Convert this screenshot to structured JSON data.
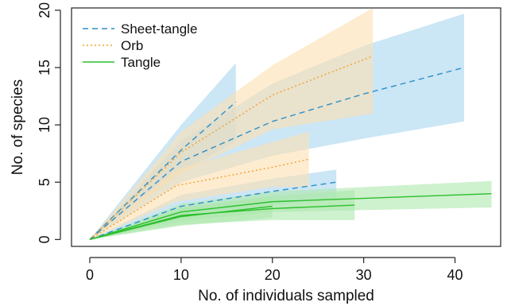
{
  "chart_data": {
    "type": "line",
    "title": "",
    "xlabel": "No. of individuals sampled",
    "ylabel": "No. of species",
    "xlim": [
      -2,
      45
    ],
    "ylim": [
      -0.6,
      20.2
    ],
    "xticks": [
      0,
      10,
      20,
      30,
      40
    ],
    "yticks": [
      0,
      5,
      10,
      15,
      20
    ],
    "grid": false,
    "legend_position": "top-left",
    "series": [
      {
        "name": "Sheet-tangle",
        "color": "#2a8fc9",
        "band_color": "#a8d6ee",
        "dash": "7,5",
        "curves": [
          {
            "x": [
              0,
              10,
              16
            ],
            "y": [
              0,
              7.8,
              12
            ],
            "lower": [
              0,
              5.8,
              8.6
            ],
            "upper": [
              0,
              10.0,
              15.4
            ]
          },
          {
            "x": [
              0,
              10,
              20,
              30,
              41
            ],
            "y": [
              0,
              6.8,
              10.3,
              12.7,
              15
            ],
            "lower": [
              0,
              5.0,
              7.3,
              8.8,
              10.3
            ],
            "upper": [
              0,
              8.6,
              13.6,
              16.9,
              19.7
            ]
          },
          {
            "x": [
              0,
              10,
              20,
              27
            ],
            "y": [
              0,
              2.9,
              4.2,
              5
            ],
            "lower": [
              0,
              1.9,
              3.0,
              3.5
            ],
            "upper": [
              0,
              3.9,
              5.3,
              6.1
            ]
          }
        ]
      },
      {
        "name": "Orb",
        "color": "#f2a12a",
        "band_color": "#fde0b3",
        "dash": "2,3",
        "curves": [
          {
            "x": [
              0,
              10,
              20,
              31
            ],
            "y": [
              0,
              7.6,
              12.6,
              16.0
            ],
            "lower": [
              0,
              5.8,
              9.6,
              11.0
            ],
            "upper": [
              0,
              9.4,
              15.2,
              20.2
            ]
          },
          {
            "x": [
              0,
              9.5,
              20,
              24
            ],
            "y": [
              0,
              4.7,
              6.3,
              7.0
            ],
            "lower": [
              0,
              3.3,
              4.6,
              4.6
            ],
            "upper": [
              0,
              6.1,
              8.5,
              9.4
            ]
          }
        ]
      },
      {
        "name": "Tangle",
        "color": "#2bbf2b",
        "band_color": "#aee8ae",
        "dash": "",
        "curves": [
          {
            "x": [
              0,
              10,
              20,
              44
            ],
            "y": [
              0,
              2.4,
              3.3,
              4.0
            ],
            "lower": [
              0,
              1.6,
              2.4,
              2.8
            ],
            "upper": [
              0,
              3.1,
              4.2,
              5.1
            ]
          },
          {
            "x": [
              0,
              10,
              20,
              29
            ],
            "y": [
              0,
              2.1,
              2.7,
              3.0
            ],
            "lower": [
              0,
              1.3,
              1.7,
              1.7
            ],
            "upper": [
              0,
              2.8,
              3.8,
              4.3
            ]
          },
          {
            "x": [
              0,
              10,
              20
            ],
            "y": [
              0,
              2.0,
              2.9
            ],
            "lower": [
              0,
              1.2,
              1.9
            ],
            "upper": [
              0,
              2.7,
              3.7
            ]
          }
        ]
      }
    ]
  }
}
